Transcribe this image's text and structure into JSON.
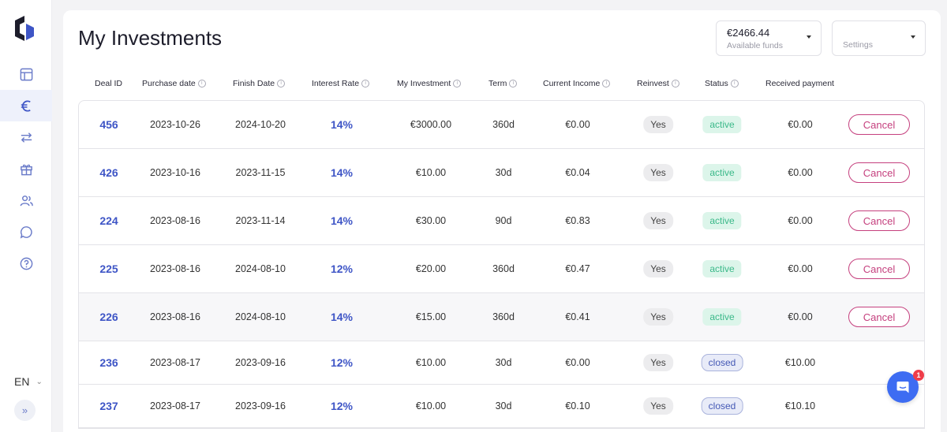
{
  "sidebar": {
    "lang": "EN",
    "items": [
      {
        "name": "dashboard-icon"
      },
      {
        "name": "euro-icon",
        "active": true
      },
      {
        "name": "transfer-icon"
      },
      {
        "name": "gift-icon"
      },
      {
        "name": "users-icon"
      },
      {
        "name": "chat-icon"
      },
      {
        "name": "help-icon"
      }
    ]
  },
  "header": {
    "title": "My Investments",
    "funds_value": "€2466.44",
    "funds_label": "Available funds",
    "settings_label": "Settings"
  },
  "table": {
    "headers": [
      "Deal ID",
      "Purchase date",
      "Finish Date",
      "Interest Rate",
      "My Investment",
      "Term",
      "Current Income",
      "Reinvest",
      "Status",
      "Received payment"
    ],
    "rows": [
      {
        "id": "456",
        "purchase": "2023-10-26",
        "finish": "2024-10-20",
        "rate": "14%",
        "investment": "€3000.00",
        "term": "360d",
        "income": "€0.00",
        "reinvest": "Yes",
        "status": "active",
        "received": "€0.00",
        "action": "Cancel"
      },
      {
        "id": "426",
        "purchase": "2023-10-16",
        "finish": "2023-11-15",
        "rate": "14%",
        "investment": "€10.00",
        "term": "30d",
        "income": "€0.04",
        "reinvest": "Yes",
        "status": "active",
        "received": "€0.00",
        "action": "Cancel"
      },
      {
        "id": "224",
        "purchase": "2023-08-16",
        "finish": "2023-11-14",
        "rate": "14%",
        "investment": "€30.00",
        "term": "90d",
        "income": "€0.83",
        "reinvest": "Yes",
        "status": "active",
        "received": "€0.00",
        "action": "Cancel"
      },
      {
        "id": "225",
        "purchase": "2023-08-16",
        "finish": "2024-08-10",
        "rate": "12%",
        "investment": "€20.00",
        "term": "360d",
        "income": "€0.47",
        "reinvest": "Yes",
        "status": "active",
        "received": "€0.00",
        "action": "Cancel"
      },
      {
        "id": "226",
        "purchase": "2023-08-16",
        "finish": "2024-08-10",
        "rate": "14%",
        "investment": "€15.00",
        "term": "360d",
        "income": "€0.41",
        "reinvest": "Yes",
        "status": "active",
        "received": "€0.00",
        "action": "Cancel"
      },
      {
        "id": "236",
        "purchase": "2023-08-17",
        "finish": "2023-09-16",
        "rate": "12%",
        "investment": "€10.00",
        "term": "30d",
        "income": "€0.00",
        "reinvest": "Yes",
        "status": "closed",
        "received": "€10.00",
        "action": ""
      },
      {
        "id": "237",
        "purchase": "2023-08-17",
        "finish": "2023-09-16",
        "rate": "12%",
        "investment": "€10.00",
        "term": "30d",
        "income": "€0.10",
        "reinvest": "Yes",
        "status": "closed",
        "received": "€10.10",
        "action": ""
      }
    ]
  },
  "chat": {
    "badge": "1"
  },
  "colors": {
    "accent": "#3e55c6",
    "active": "#3cb98a",
    "cancel": "#c5407e",
    "chat": "#3d6cf2"
  }
}
